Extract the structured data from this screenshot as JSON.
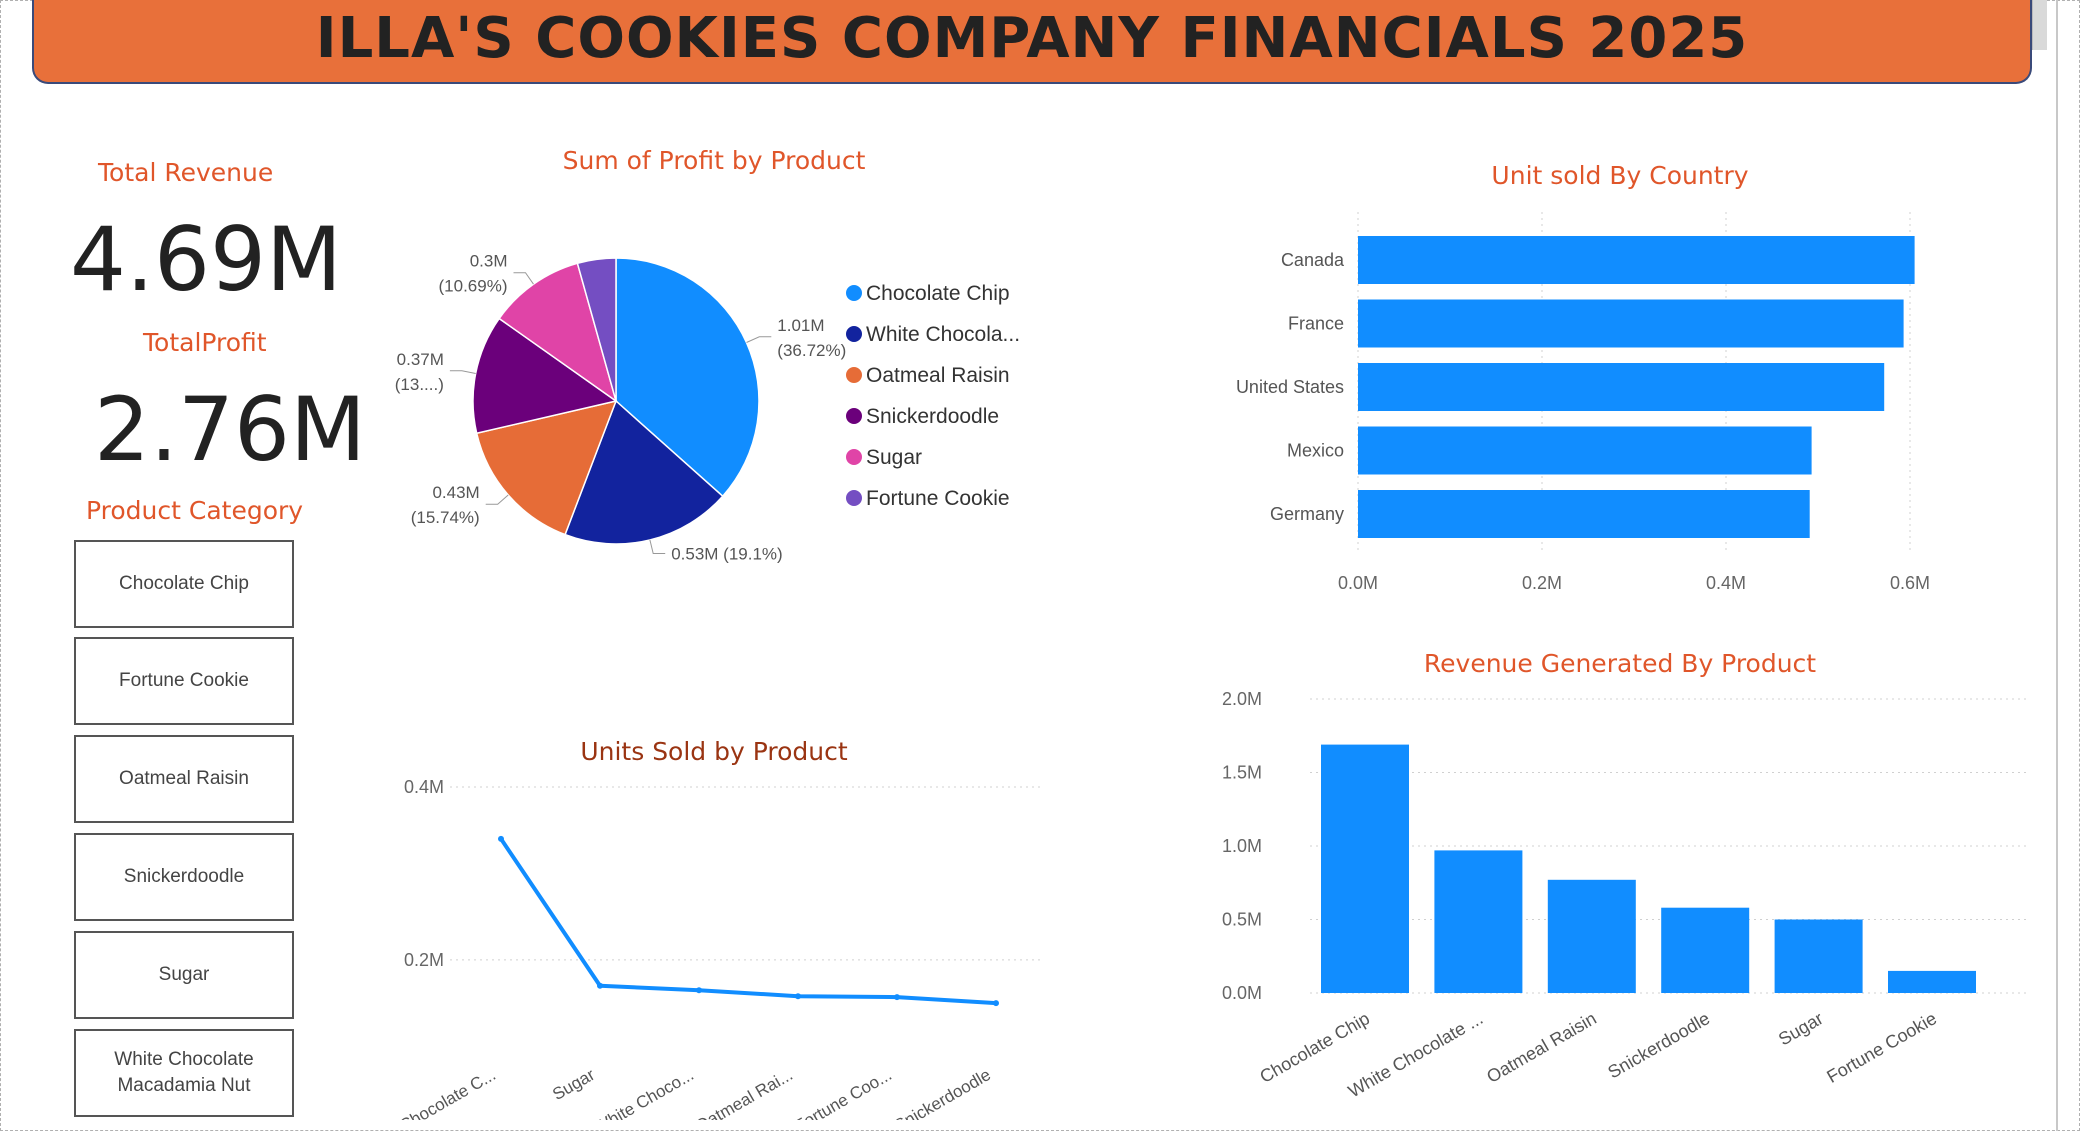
{
  "header": {
    "title": "ILLA'S COOKIES COMPANY FINANCIALS 2025"
  },
  "kpis": {
    "revenue_label": "Total Revenue",
    "revenue_value": "4.69M",
    "profit_label": "TotalProfit",
    "profit_value": "2.76M"
  },
  "slicer": {
    "title": "Product Category",
    "items": [
      "Chocolate Chip",
      "Fortune Cookie",
      "Oatmeal Raisin",
      "Snickerdoodle",
      "Sugar",
      "White Chocolate Macadamia Nut"
    ]
  },
  "colors": {
    "accent": "#E8703A",
    "title_orange": "#E0562A",
    "bar_blue": "#118DFF",
    "grid": "#d0d0d0"
  },
  "chart_data": [
    {
      "type": "pie",
      "title": "Sum of Profit by Product",
      "categories": [
        "Chocolate Chip",
        "White Chocolate Macadamia Nut",
        "Oatmeal Raisin",
        "Snickerdoodle",
        "Sugar",
        "Fortune Cookie"
      ],
      "legend_labels": [
        "Chocolate Chip",
        "White Chocola...",
        "Oatmeal Raisin",
        "Snickerdoodle",
        "Sugar",
        "Fortune Cookie"
      ],
      "values": [
        1.01,
        0.53,
        0.43,
        0.37,
        0.3,
        0.12
      ],
      "percents": [
        36.72,
        19.1,
        15.74,
        13.0,
        10.69,
        4.75
      ],
      "data_labels": [
        [
          "1.01M",
          "(36.72%)"
        ],
        [
          "0.53M (19.1%)"
        ],
        [
          "0.43M",
          "(15.74%)"
        ],
        [
          "0.37M",
          "(13....)"
        ],
        [
          "0.3M",
          "(10.69%)"
        ],
        []
      ],
      "colors": [
        "#118DFF",
        "#12239E",
        "#E66C37",
        "#6B007B",
        "#E044A7",
        "#744EC2"
      ],
      "legend_position": "right"
    },
    {
      "type": "bar",
      "orientation": "horizontal",
      "title": "Unit sold By Country",
      "categories": [
        "Canada",
        "France",
        "United States",
        "Mexico",
        "Germany"
      ],
      "values": [
        0.605,
        0.593,
        0.572,
        0.493,
        0.491
      ],
      "xlim": [
        0,
        0.6
      ],
      "ticks": [
        "0.0M",
        "0.2M",
        "0.4M",
        "0.6M"
      ],
      "tick_values": [
        0,
        0.2,
        0.4,
        0.6
      ],
      "color": "#118DFF",
      "grid": true
    },
    {
      "type": "line",
      "title": "Units Sold by Product",
      "categories": [
        "Chocolate C...",
        "Sugar",
        "White Choco...",
        "Oatmeal Rai...",
        "Fortune Coo...",
        "Snickerdoodle"
      ],
      "values": [
        0.34,
        0.17,
        0.165,
        0.158,
        0.157,
        0.15
      ],
      "ticks": [
        "0.2M",
        "0.4M"
      ],
      "tick_values": [
        0.2,
        0.4
      ],
      "ylim": [
        0.09,
        0.4
      ],
      "color": "#118DFF",
      "grid": true
    },
    {
      "type": "bar",
      "title": "Revenue Generated By Product",
      "categories": [
        "Chocolate Chip",
        "White Chocolate ...",
        "Oatmeal Raisin",
        "Snickerdoodle",
        "Sugar",
        "Fortune Cookie"
      ],
      "values": [
        1.69,
        0.97,
        0.77,
        0.58,
        0.5,
        0.15
      ],
      "ylim": [
        0,
        2.0
      ],
      "ticks": [
        "0.0M",
        "0.5M",
        "1.0M",
        "1.5M",
        "2.0M"
      ],
      "tick_values": [
        0,
        0.5,
        1.0,
        1.5,
        2.0
      ],
      "color": "#118DFF",
      "grid": true
    }
  ]
}
